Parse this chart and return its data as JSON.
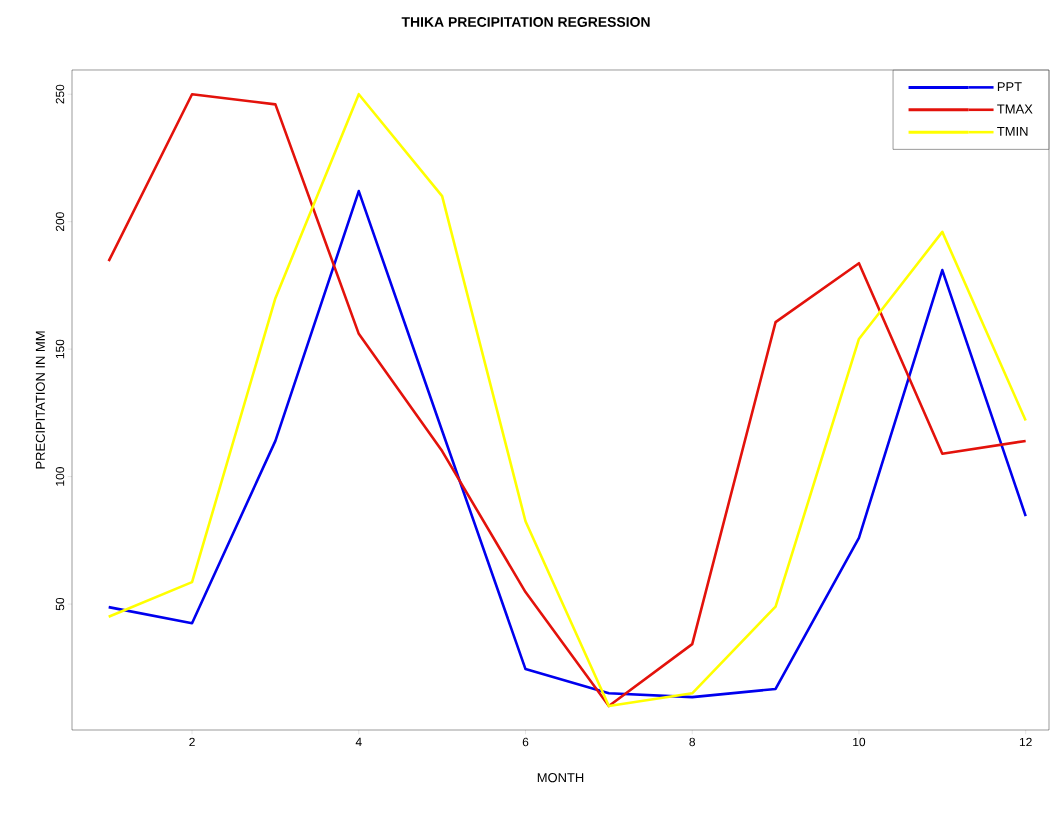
{
  "chart_data": {
    "type": "line",
    "title": "THIKA PRECIPITATION REGRESSION",
    "xlabel": "MONTH",
    "ylabel": "PRECIPITATION IN MM",
    "x": [
      1,
      2,
      3,
      4,
      5,
      6,
      7,
      8,
      9,
      10,
      11,
      12
    ],
    "series": [
      {
        "name": "PPT",
        "color": "#0000ee",
        "values": [
          48.8,
          42.5,
          114,
          212,
          118,
          24.5,
          15,
          13.5,
          16.7,
          76,
          181,
          84.5
        ]
      },
      {
        "name": "TMAX",
        "color": "#e3120b",
        "values": [
          184.5,
          250,
          246,
          156,
          110,
          54.7,
          10,
          34.3,
          160.6,
          183.7,
          109,
          114
        ]
      },
      {
        "name": "TMIN",
        "color": "#ffff00",
        "values": [
          45,
          58.6,
          170,
          250,
          210,
          82.5,
          10,
          15,
          49,
          154,
          196,
          122
        ]
      }
    ],
    "xlim": [
      0.56,
      12.28
    ],
    "ylim": [
      0.6,
      259.5
    ],
    "xticks": [
      2,
      4,
      6,
      8,
      10,
      12
    ],
    "yticks": [
      50,
      100,
      150,
      200,
      250
    ],
    "grid": false,
    "legend": "top right",
    "line_style": "solid",
    "marker": "none"
  }
}
